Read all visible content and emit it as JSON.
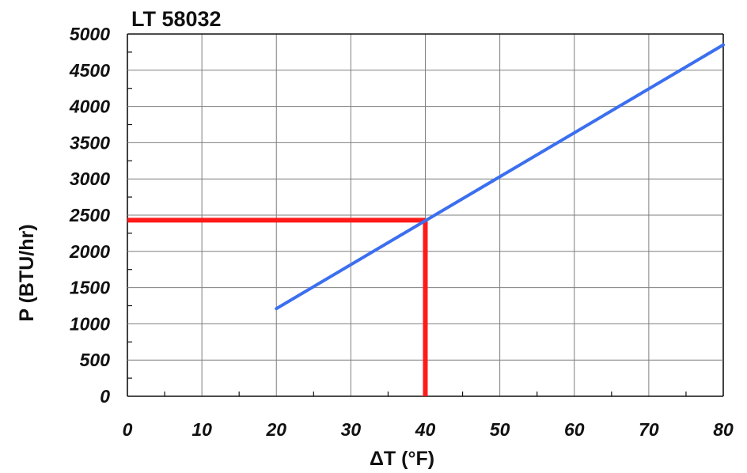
{
  "chart_data": {
    "type": "line",
    "title": "LT 58032",
    "xlabel": "ΔT (°F)",
    "ylabel": "P (BTU/hr)",
    "xlim": [
      0,
      80
    ],
    "ylim": [
      0,
      5000
    ],
    "x_ticks": [
      0,
      10,
      20,
      30,
      40,
      50,
      60,
      70,
      80
    ],
    "y_ticks": [
      0,
      500,
      1000,
      1500,
      2000,
      2500,
      3000,
      3500,
      4000,
      4500,
      5000
    ],
    "grid": true,
    "colors": {
      "series": "#3b6ff0",
      "guide": "#ff1a1a",
      "grid": "#7f7f7f",
      "axis": "#111111"
    },
    "series": [
      {
        "x": [
          20,
          80
        ],
        "y": [
          1210,
          4850
        ]
      }
    ],
    "annotations": [
      {
        "type": "guide",
        "x": 40,
        "y": 2430,
        "color": "#ff1a1a"
      }
    ]
  }
}
